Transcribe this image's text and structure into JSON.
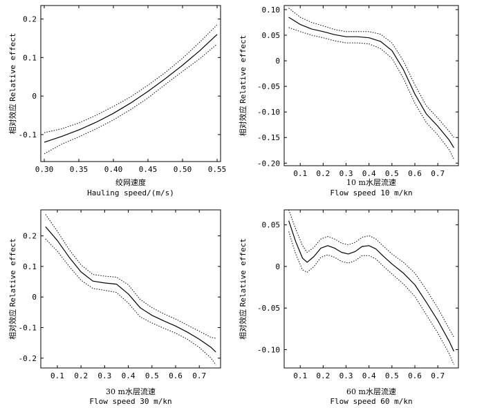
{
  "chart_data": [
    {
      "type": "line",
      "xlabel_cn": "绞网速度",
      "xlabel_en": "Hauling speed/(m/s)",
      "ylabel_cn": "相对效应",
      "ylabel_en": "Relative effect",
      "xlim": [
        0.295,
        0.555
      ],
      "ylim": [
        -0.17,
        0.235
      ],
      "xticks": [
        0.3,
        0.35,
        0.4,
        0.45,
        0.5,
        0.55
      ],
      "xtick_labels": [
        "0.30",
        "0.35",
        "0.40",
        "0.45",
        "0.50",
        "0.55"
      ],
      "yticks": [
        -0.1,
        0,
        0.1,
        0.2
      ],
      "ytick_labels": [
        "-0.1",
        "0",
        "0.1",
        "0.2"
      ],
      "series": [
        {
          "name": "fit",
          "style": "solid",
          "x": [
            0.3,
            0.325,
            0.35,
            0.375,
            0.4,
            0.425,
            0.45,
            0.475,
            0.5,
            0.525,
            0.55
          ],
          "y": [
            -0.12,
            -0.105,
            -0.088,
            -0.068,
            -0.045,
            -0.018,
            0.012,
            0.045,
            0.08,
            0.118,
            0.16
          ]
        },
        {
          "name": "upper",
          "style": "dotted",
          "x": [
            0.3,
            0.325,
            0.35,
            0.375,
            0.4,
            0.425,
            0.45,
            0.475,
            0.5,
            0.525,
            0.55
          ],
          "y": [
            -0.095,
            -0.085,
            -0.07,
            -0.05,
            -0.027,
            -0.002,
            0.028,
            0.061,
            0.098,
            0.14,
            0.185
          ]
        },
        {
          "name": "lower",
          "style": "dotted",
          "x": [
            0.3,
            0.325,
            0.35,
            0.375,
            0.4,
            0.425,
            0.45,
            0.475,
            0.5,
            0.525,
            0.55
          ],
          "y": [
            -0.15,
            -0.125,
            -0.106,
            -0.085,
            -0.062,
            -0.035,
            -0.005,
            0.03,
            0.064,
            0.097,
            0.135
          ]
        }
      ]
    },
    {
      "type": "line",
      "xlabel_cn": "10 m水层流速",
      "xlabel_en": "Flow speed 10 m/kn",
      "ylabel_cn": "相对效应",
      "ylabel_en": "Relative effect",
      "xlim": [
        0.03,
        0.79
      ],
      "ylim": [
        -0.205,
        0.108
      ],
      "xticks": [
        0.1,
        0.2,
        0.3,
        0.4,
        0.5,
        0.6,
        0.7
      ],
      "xtick_labels": [
        "0.1",
        "0.2",
        "0.3",
        "0.4",
        "0.5",
        "0.6",
        "0.7"
      ],
      "yticks": [
        -0.2,
        -0.15,
        -0.1,
        -0.05,
        0,
        0.05,
        0.1
      ],
      "ytick_labels": [
        "-0.20",
        "-0.15",
        "-0.10",
        "-0.05",
        "0",
        "0.05",
        "0.10"
      ],
      "series": [
        {
          "name": "fit",
          "style": "solid",
          "x": [
            0.05,
            0.1,
            0.15,
            0.2,
            0.25,
            0.3,
            0.35,
            0.4,
            0.45,
            0.5,
            0.55,
            0.6,
            0.65,
            0.7,
            0.75,
            0.77
          ],
          "y": [
            0.085,
            0.071,
            0.062,
            0.057,
            0.051,
            0.047,
            0.047,
            0.045,
            0.038,
            0.02,
            -0.017,
            -0.065,
            -0.104,
            -0.128,
            -0.155,
            -0.17
          ]
        },
        {
          "name": "upper",
          "style": "dotted",
          "x": [
            0.05,
            0.1,
            0.15,
            0.2,
            0.25,
            0.3,
            0.35,
            0.4,
            0.45,
            0.5,
            0.55,
            0.6,
            0.65,
            0.7,
            0.75,
            0.77
          ],
          "y": [
            0.103,
            0.085,
            0.075,
            0.068,
            0.061,
            0.057,
            0.057,
            0.057,
            0.052,
            0.035,
            0.0,
            -0.047,
            -0.088,
            -0.112,
            -0.138,
            -0.15
          ]
        },
        {
          "name": "lower",
          "style": "dotted",
          "x": [
            0.05,
            0.1,
            0.15,
            0.2,
            0.25,
            0.3,
            0.35,
            0.4,
            0.45,
            0.5,
            0.55,
            0.6,
            0.65,
            0.7,
            0.75,
            0.77
          ],
          "y": [
            0.065,
            0.057,
            0.05,
            0.045,
            0.039,
            0.035,
            0.035,
            0.033,
            0.024,
            0.005,
            -0.034,
            -0.083,
            -0.121,
            -0.145,
            -0.174,
            -0.192
          ]
        }
      ]
    },
    {
      "type": "line",
      "xlabel_cn": "30 m水层流速",
      "xlabel_en": "Flow speed 30 m/kn",
      "ylabel_cn": "相对效应",
      "ylabel_en": "Relative effect",
      "xlim": [
        0.03,
        0.79
      ],
      "ylim": [
        -0.232,
        0.285
      ],
      "xticks": [
        0.1,
        0.2,
        0.3,
        0.4,
        0.5,
        0.6,
        0.7
      ],
      "xtick_labels": [
        "0.1",
        "0.2",
        "0.3",
        "0.4",
        "0.5",
        "0.6",
        "0.7"
      ],
      "yticks": [
        -0.2,
        -0.1,
        0,
        0.1,
        0.2
      ],
      "ytick_labels": [
        "-0.2",
        "-0.1",
        "0",
        "0.1",
        "0.2"
      ],
      "series": [
        {
          "name": "fit",
          "style": "solid",
          "x": [
            0.05,
            0.1,
            0.15,
            0.2,
            0.25,
            0.3,
            0.35,
            0.4,
            0.45,
            0.5,
            0.55,
            0.6,
            0.65,
            0.7,
            0.75,
            0.77
          ],
          "y": [
            0.23,
            0.185,
            0.13,
            0.082,
            0.052,
            0.046,
            0.042,
            0.01,
            -0.035,
            -0.06,
            -0.078,
            -0.095,
            -0.115,
            -0.138,
            -0.165,
            -0.18
          ]
        },
        {
          "name": "upper",
          "style": "dotted",
          "x": [
            0.05,
            0.1,
            0.15,
            0.2,
            0.25,
            0.3,
            0.35,
            0.4,
            0.45,
            0.5,
            0.55,
            0.6,
            0.65,
            0.7,
            0.75,
            0.77
          ],
          "y": [
            0.27,
            0.215,
            0.155,
            0.105,
            0.074,
            0.068,
            0.065,
            0.04,
            -0.008,
            -0.035,
            -0.055,
            -0.072,
            -0.092,
            -0.112,
            -0.132,
            -0.135
          ]
        },
        {
          "name": "lower",
          "style": "dotted",
          "x": [
            0.05,
            0.1,
            0.15,
            0.2,
            0.25,
            0.3,
            0.35,
            0.4,
            0.45,
            0.5,
            0.55,
            0.6,
            0.65,
            0.7,
            0.75,
            0.77
          ],
          "y": [
            0.19,
            0.15,
            0.1,
            0.055,
            0.028,
            0.022,
            0.015,
            -0.02,
            -0.065,
            -0.085,
            -0.102,
            -0.118,
            -0.138,
            -0.165,
            -0.2,
            -0.222
          ]
        }
      ]
    },
    {
      "type": "line",
      "xlabel_cn": "60 m水层流速",
      "xlabel_en": "Flow speed 60 m/kn",
      "ylabel_cn": "相对效应",
      "ylabel_en": "Relative effect",
      "xlim": [
        0.03,
        0.79
      ],
      "ylim": [
        -0.122,
        0.068
      ],
      "xticks": [
        0.1,
        0.2,
        0.3,
        0.4,
        0.5,
        0.6,
        0.7
      ],
      "xtick_labels": [
        "0.1",
        "0.2",
        "0.3",
        "0.4",
        "0.5",
        "0.6",
        "0.7"
      ],
      "yticks": [
        -0.1,
        -0.05,
        0,
        0.05
      ],
      "ytick_labels": [
        "-0.10",
        "-0.05",
        "0",
        "0.05"
      ],
      "series": [
        {
          "name": "fit",
          "style": "solid",
          "x": [
            0.05,
            0.08,
            0.11,
            0.13,
            0.16,
            0.19,
            0.22,
            0.25,
            0.28,
            0.31,
            0.34,
            0.37,
            0.4,
            0.43,
            0.46,
            0.5,
            0.55,
            0.6,
            0.65,
            0.7,
            0.75,
            0.77
          ],
          "y": [
            0.055,
            0.03,
            0.01,
            0.005,
            0.012,
            0.022,
            0.025,
            0.022,
            0.017,
            0.015,
            0.018,
            0.024,
            0.025,
            0.021,
            0.013,
            0.003,
            -0.008,
            -0.022,
            -0.043,
            -0.065,
            -0.09,
            -0.102
          ]
        },
        {
          "name": "upper",
          "style": "dotted",
          "x": [
            0.05,
            0.08,
            0.11,
            0.13,
            0.16,
            0.19,
            0.22,
            0.25,
            0.28,
            0.31,
            0.34,
            0.37,
            0.4,
            0.43,
            0.46,
            0.5,
            0.55,
            0.6,
            0.65,
            0.7,
            0.75,
            0.77
          ],
          "y": [
            0.068,
            0.045,
            0.025,
            0.017,
            0.023,
            0.033,
            0.036,
            0.033,
            0.028,
            0.026,
            0.029,
            0.035,
            0.037,
            0.033,
            0.025,
            0.015,
            0.005,
            -0.008,
            -0.028,
            -0.05,
            -0.075,
            -0.085
          ]
        },
        {
          "name": "lower",
          "style": "dotted",
          "x": [
            0.05,
            0.08,
            0.11,
            0.13,
            0.16,
            0.19,
            0.22,
            0.25,
            0.28,
            0.31,
            0.34,
            0.37,
            0.4,
            0.43,
            0.46,
            0.5,
            0.55,
            0.6,
            0.65,
            0.7,
            0.75,
            0.77
          ],
          "y": [
            0.042,
            0.015,
            -0.004,
            -0.007,
            0.0,
            0.011,
            0.014,
            0.011,
            0.006,
            0.004,
            0.007,
            0.013,
            0.013,
            0.009,
            0.001,
            -0.009,
            -0.021,
            -0.036,
            -0.058,
            -0.08,
            -0.105,
            -0.118
          ]
        }
      ]
    }
  ]
}
